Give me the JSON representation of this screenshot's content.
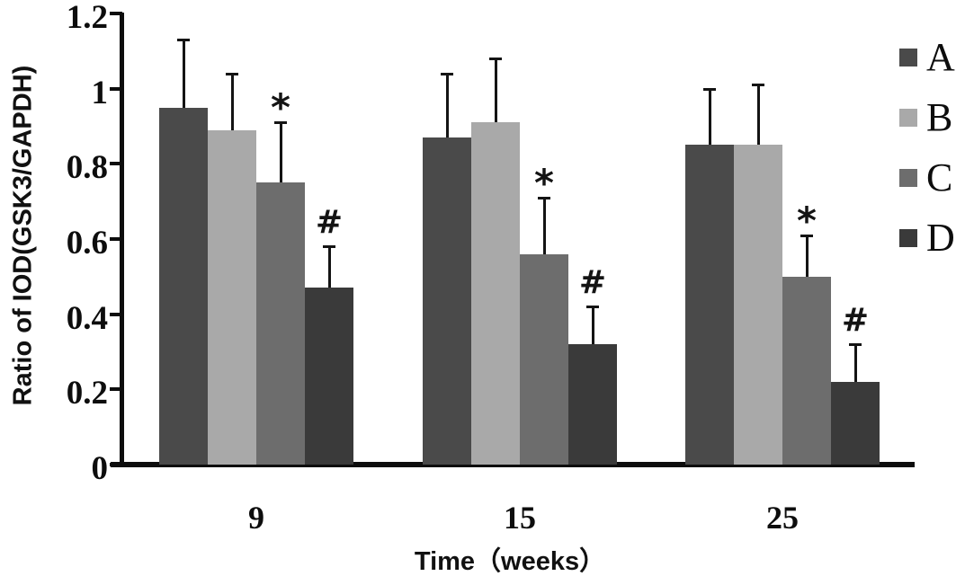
{
  "chart_data": {
    "type": "bar",
    "title": "",
    "xlabel": "Time（weeks）",
    "ylabel": "Ratio of IOD(GSK3/GAPDH)",
    "categories": [
      "9",
      "15",
      "25"
    ],
    "series": [
      {
        "name": "A",
        "color": "#4a4a4a",
        "values": [
          0.95,
          0.87,
          0.85
        ],
        "errors_plus": [
          0.18,
          0.17,
          0.15
        ],
        "significance_marker": ""
      },
      {
        "name": "B",
        "color": "#a9a9a9",
        "values": [
          0.89,
          0.91,
          0.85
        ],
        "errors_plus": [
          0.15,
          0.17,
          0.16
        ],
        "significance_marker": ""
      },
      {
        "name": "C",
        "color": "#6d6d6d",
        "values": [
          0.75,
          0.56,
          0.5
        ],
        "errors_plus": [
          0.16,
          0.15,
          0.11
        ],
        "significance_marker": "*"
      },
      {
        "name": "D",
        "color": "#3a3a3a",
        "values": [
          0.47,
          0.32,
          0.22
        ],
        "errors_plus": [
          0.11,
          0.1,
          0.1
        ],
        "significance_marker": "#"
      }
    ],
    "ylim": [
      0,
      1.2
    ],
    "yticks": [
      0,
      0.2,
      0.4,
      0.6,
      0.8,
      1,
      1.2
    ],
    "ytick_labels": [
      "0",
      "0.2",
      "0.4",
      "0.6",
      "0.8",
      "1",
      "1.2"
    ],
    "legend_position": "right",
    "legend_entries": [
      "A",
      "B",
      "C",
      "D"
    ],
    "grid": false,
    "error_bars": "upper-only",
    "axis_color": "#0d0d0d",
    "background_color": "#ffffff"
  }
}
